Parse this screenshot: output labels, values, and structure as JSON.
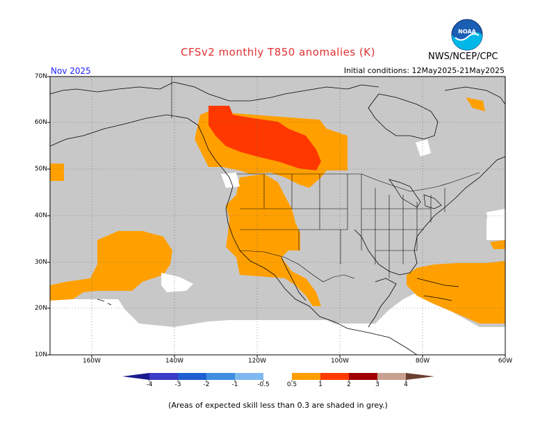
{
  "title": "CFSv2 monthly T850 anomalies (K)",
  "agency": "NWS/NCEP/CPC",
  "logo_text": "NOAA",
  "month": "Nov 2025",
  "initial_conditions": "Initial conditions: 12May2025-21May2025",
  "footnote": "(Areas of expected skill less than 0.3 are shaded in grey.)",
  "lat_labels": [
    "70N",
    "60N",
    "50N",
    "40N",
    "30N",
    "20N",
    "10N"
  ],
  "lon_labels": [
    "160W",
    "140W",
    "120W",
    "100W",
    "80W",
    "60W"
  ],
  "colorbar": {
    "ticks": [
      "-4",
      "-3",
      "-2",
      "-1",
      "-0.5",
      "0.5",
      "1",
      "2",
      "3",
      "4"
    ],
    "colors": [
      "#1a1a8c",
      "#3b3bc8",
      "#1f5fd0",
      "#3c8ee0",
      "#7fb8f0",
      "#ffffff",
      "#ff9e00",
      "#ff3a00",
      "#a00000",
      "#c8a090",
      "#6b4030"
    ]
  },
  "colors": {
    "skill_grey": "#c8c8c8",
    "anomaly_0_5_1": "#ffa000",
    "anomaly_1_2": "#ff3800",
    "title_red": "#e03030",
    "month_blue": "#1a1aff"
  }
}
